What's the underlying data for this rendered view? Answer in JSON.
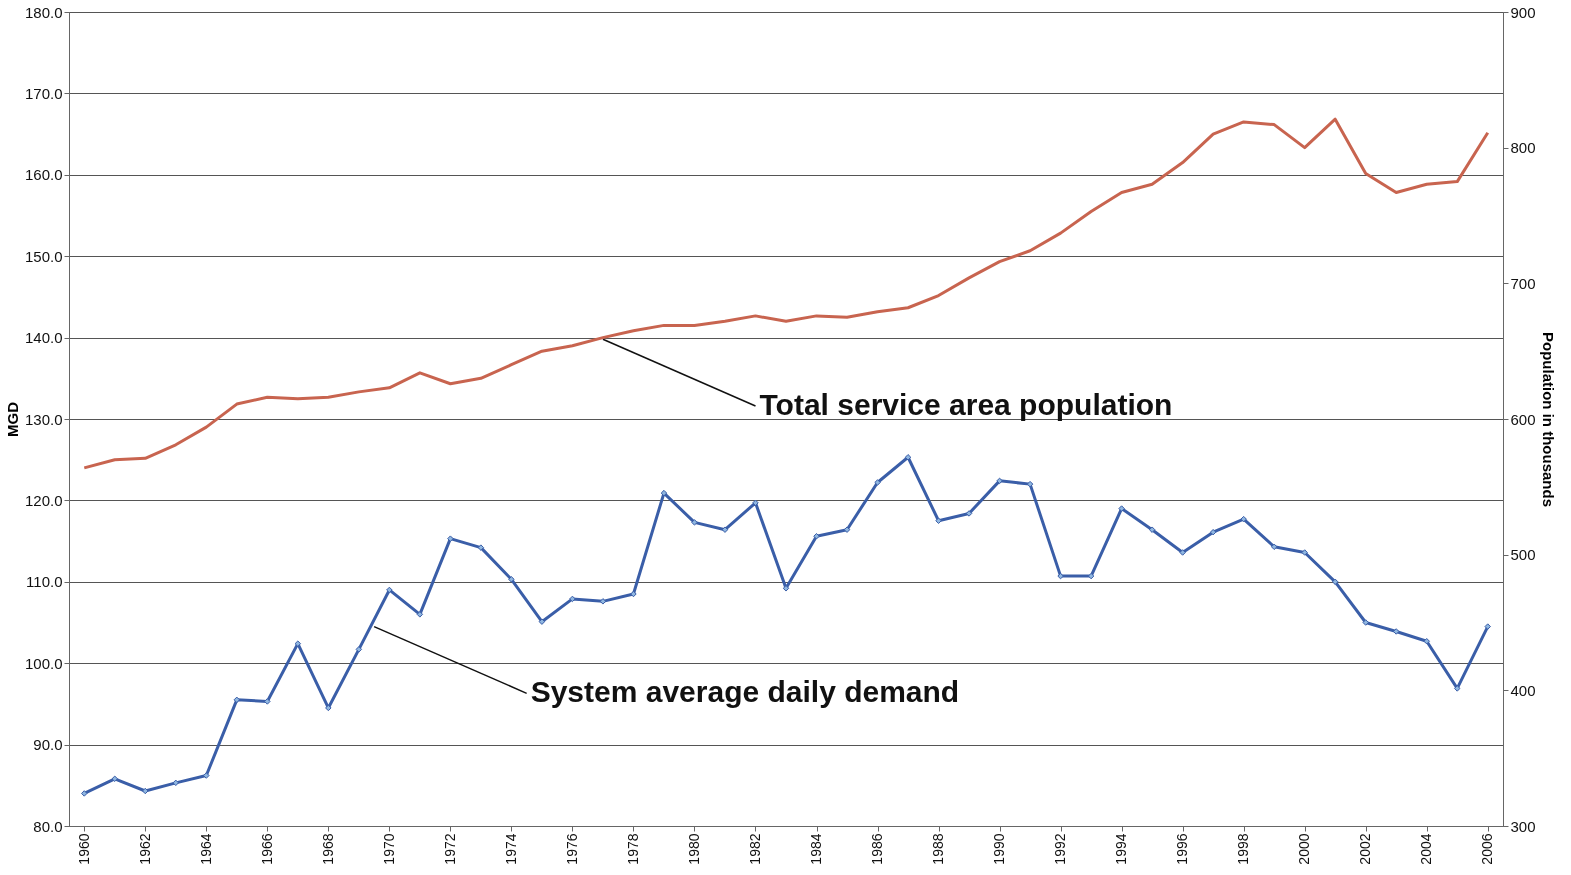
{
  "chart_data": {
    "type": "line",
    "ylabel": "MGD",
    "y2label": "Population in thousands",
    "x": [
      1960,
      1961,
      1962,
      1963,
      1964,
      1965,
      1966,
      1967,
      1968,
      1969,
      1970,
      1971,
      1972,
      1973,
      1974,
      1975,
      1976,
      1977,
      1978,
      1979,
      1980,
      1981,
      1982,
      1983,
      1984,
      1985,
      1986,
      1987,
      1988,
      1989,
      1990,
      1991,
      1992,
      1993,
      1994,
      1995,
      1996,
      1997,
      1998,
      1999,
      2000,
      2001,
      2002,
      2003,
      2004,
      2005,
      2006
    ],
    "xlim": [
      1959.5,
      2006.5
    ],
    "xticks": [
      1960,
      1962,
      1964,
      1966,
      1968,
      1970,
      1972,
      1974,
      1976,
      1978,
      1980,
      1982,
      1984,
      1986,
      1988,
      1990,
      1992,
      1994,
      1996,
      1998,
      2000,
      2002,
      2004,
      2006
    ],
    "ylim": [
      80,
      180
    ],
    "yticks": [
      {
        "value": 80,
        "label": "80.0"
      },
      {
        "value": 90,
        "label": "90.0"
      },
      {
        "value": 100,
        "label": "100.0"
      },
      {
        "value": 110,
        "label": "110.0"
      },
      {
        "value": 120,
        "label": "120.0"
      },
      {
        "value": 130,
        "label": "130.0"
      },
      {
        "value": 140,
        "label": "140.0"
      },
      {
        "value": 150,
        "label": "150.0"
      },
      {
        "value": 160,
        "label": "160.0"
      },
      {
        "value": 170,
        "label": "170.0"
      },
      {
        "value": 180,
        "label": "180.0"
      }
    ],
    "y2lim": [
      300,
      900
    ],
    "y2ticks": [
      300,
      400,
      500,
      600,
      700,
      800,
      900
    ],
    "grid": "y",
    "legend": false,
    "series": [
      {
        "color": "#3a5ea8",
        "marker": "diamond",
        "values": [
          84.0,
          85.8,
          84.3,
          85.3,
          86.2,
          95.5,
          95.3,
          102.4,
          94.5,
          101.7,
          109.0,
          106.0,
          115.3,
          114.2,
          110.3,
          105.1,
          107.9,
          107.6,
          108.5,
          120.9,
          117.3,
          116.4,
          119.7,
          109.2,
          115.6,
          116.4,
          122.2,
          125.3,
          117.5,
          118.4,
          122.4,
          122.0,
          110.7,
          110.7,
          119.0,
          116.4,
          113.6,
          116.1,
          117.7,
          114.3,
          113.6,
          110.0,
          105.0,
          103.9,
          102.7,
          96.9,
          104.5
        ]
      },
      {
        "color": "#c8644f",
        "axis": "y2",
        "values": [
          564,
          570,
          571,
          581,
          594,
          611,
          616,
          615,
          616,
          620,
          623,
          634,
          626,
          630,
          640,
          650,
          654,
          660,
          665,
          669,
          669,
          672,
          676,
          672,
          676,
          675,
          679,
          682,
          691,
          704,
          716,
          724,
          737,
          753,
          767,
          773,
          789,
          810,
          819,
          817,
          800,
          821,
          781,
          767,
          773,
          775,
          811
        ]
      }
    ],
    "annotations": [
      {
        "text": "Total service area population",
        "x": 1977,
        "y": 139.8
      },
      {
        "text": "System average daily demand",
        "x": 1969.5,
        "y": 104.5
      }
    ]
  }
}
